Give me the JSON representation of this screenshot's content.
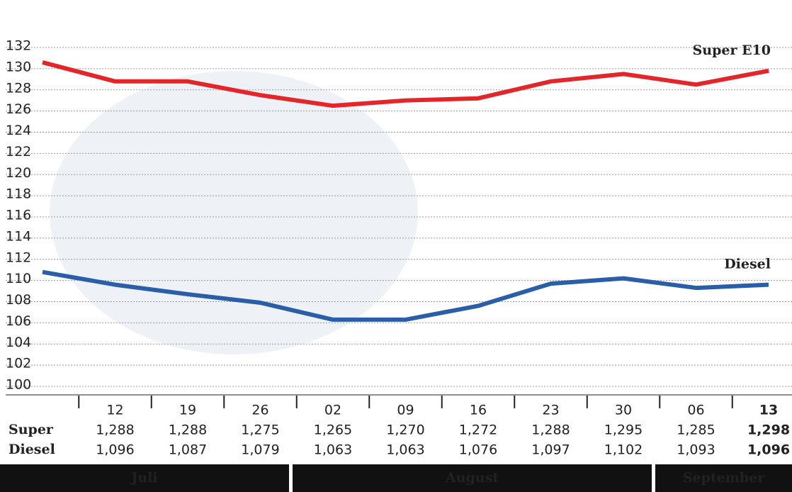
{
  "chart_data": {
    "type": "line",
    "categories": [
      null,
      "12",
      "19",
      "26",
      "02",
      "09",
      "16",
      "23",
      "30",
      "06",
      "13"
    ],
    "series": [
      {
        "name": "Super E10",
        "row_label": "Super",
        "color": "#e3262a",
        "values": [
          130.6,
          128.8,
          128.8,
          127.5,
          126.5,
          127.0,
          127.2,
          128.8,
          129.5,
          128.5,
          129.8
        ],
        "value_labels": [
          null,
          "1,288",
          "1,288",
          "1,275",
          "1,265",
          "1,270",
          "1,272",
          "1,288",
          "1,295",
          "1,285",
          "1,298"
        ]
      },
      {
        "name": "Diesel",
        "row_label": "Diesel",
        "color": "#2a5ea8",
        "values": [
          110.8,
          109.6,
          108.7,
          107.9,
          106.3,
          106.3,
          107.6,
          109.7,
          110.2,
          109.3,
          109.6
        ],
        "value_labels": [
          null,
          "1,096",
          "1,087",
          "1,079",
          "1,063",
          "1,063",
          "1,076",
          "1,097",
          "1,102",
          "1,093",
          "1,096"
        ]
      }
    ],
    "ylim": [
      100,
      132
    ],
    "yticks": [
      100,
      102,
      104,
      106,
      108,
      110,
      112,
      114,
      116,
      118,
      120,
      122,
      124,
      126,
      128,
      130,
      132
    ],
    "grid": true,
    "months": [
      "Juli",
      "August",
      "September"
    ]
  }
}
